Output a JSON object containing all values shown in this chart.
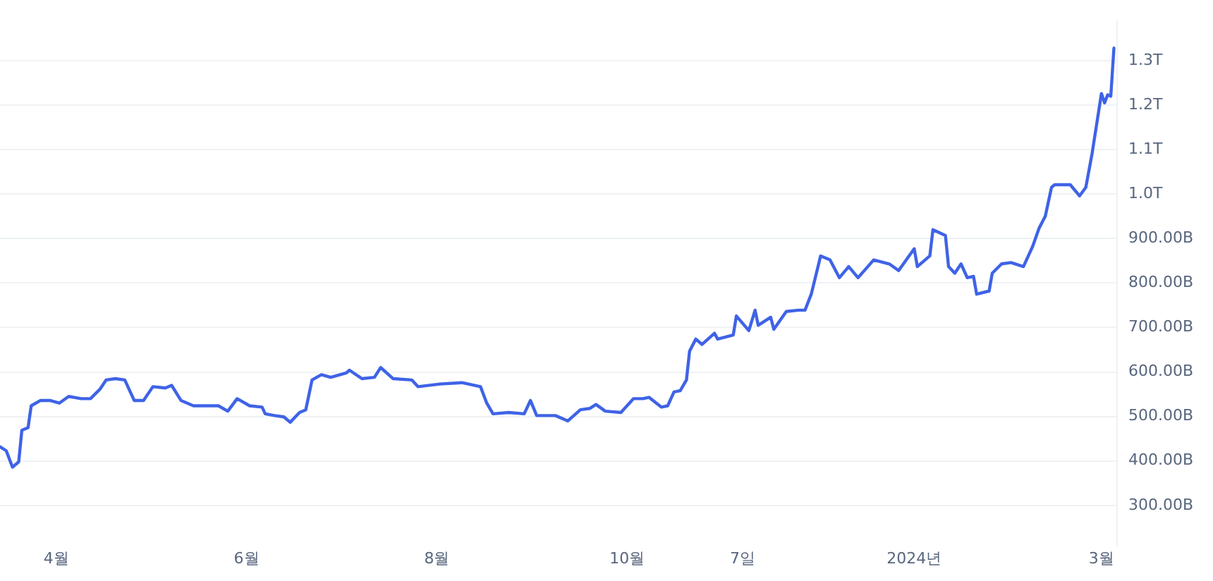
{
  "chart_data": {
    "type": "line",
    "color": "#3f63e6",
    "grid": "y",
    "legend": false,
    "marker": "none",
    "line_style": "solid",
    "x": [
      "2023-03-14",
      "2023-03-16",
      "2023-03-18",
      "2023-03-20",
      "2023-03-21",
      "2023-03-23",
      "2023-03-24",
      "2023-03-27",
      "2023-03-30",
      "2023-04-02",
      "2023-04-05",
      "2023-04-09",
      "2023-04-12",
      "2023-04-15",
      "2023-04-17",
      "2023-04-20",
      "2023-04-23",
      "2023-04-26",
      "2023-04-29",
      "2023-05-02",
      "2023-05-06",
      "2023-05-08",
      "2023-05-11",
      "2023-05-15",
      "2023-05-19",
      "2023-05-23",
      "2023-05-26",
      "2023-05-29",
      "2023-06-02",
      "2023-06-06",
      "2023-06-07",
      "2023-06-10",
      "2023-06-13",
      "2023-06-15",
      "2023-06-18",
      "2023-06-20",
      "2023-06-22",
      "2023-06-25",
      "2023-06-28",
      "2023-07-03",
      "2023-07-04",
      "2023-07-08",
      "2023-07-12",
      "2023-07-14",
      "2023-07-18",
      "2023-07-24",
      "2023-07-26",
      "2023-08-02",
      "2023-08-09",
      "2023-08-15",
      "2023-08-17",
      "2023-08-19",
      "2023-08-24",
      "2023-08-29",
      "2023-08-31",
      "2023-09-02",
      "2023-09-08",
      "2023-09-12",
      "2023-09-16",
      "2023-09-19",
      "2023-09-21",
      "2023-09-24",
      "2023-09-29",
      "2023-10-03",
      "2023-10-06",
      "2023-10-08",
      "2023-10-12",
      "2023-10-14",
      "2023-10-16",
      "2023-10-18",
      "2023-10-20",
      "2023-10-21",
      "2023-10-23",
      "2023-10-25",
      "2023-10-29",
      "2023-10-30",
      "2023-11-04",
      "2023-11-05",
      "2023-11-09",
      "2023-11-11",
      "2023-11-12",
      "2023-11-16",
      "2023-11-17",
      "2023-11-21",
      "2023-11-25",
      "2023-11-27",
      "2023-11-29",
      "2023-12-02",
      "2023-12-05",
      "2023-12-08",
      "2023-12-11",
      "2023-12-14",
      "2023-12-19",
      "2023-12-24",
      "2023-12-27",
      "2024-01-01",
      "2024-01-02",
      "2024-01-06",
      "2024-01-07",
      "2024-01-11",
      "2024-01-12",
      "2024-01-14",
      "2024-01-16",
      "2024-01-18",
      "2024-01-20",
      "2024-01-21",
      "2024-01-25",
      "2024-01-26",
      "2024-01-29",
      "2024-02-01",
      "2024-02-05",
      "2024-02-08",
      "2024-02-10",
      "2024-02-12",
      "2024-02-14",
      "2024-02-15",
      "2024-02-20",
      "2024-02-23",
      "2024-02-25",
      "2024-02-27",
      "2024-03-01",
      "2024-03-02",
      "2024-03-03",
      "2024-03-04",
      "2024-03-05"
    ],
    "values": [
      432000000000.0,
      423000000000.0,
      386000000000.0,
      398000000000.0,
      469000000000.0,
      475000000000.0,
      524000000000.0,
      536000000000.0,
      536000000000.0,
      530000000000.0,
      545000000000.0,
      540000000000.0,
      540000000000.0,
      561000000000.0,
      582000000000.0,
      585000000000.0,
      582000000000.0,
      536000000000.0,
      536000000000.0,
      567000000000.0,
      564000000000.0,
      570000000000.0,
      536000000000.0,
      524000000000.0,
      524000000000.0,
      524000000000.0,
      512000000000.0,
      540000000000.0,
      524000000000.0,
      521000000000.0,
      506000000000.0,
      502000000000.0,
      499000000000.0,
      487000000000.0,
      509000000000.0,
      515000000000.0,
      582000000000.0,
      594000000000.0,
      588000000000.0,
      598000000000.0,
      604000000000.0,
      585000000000.0,
      588000000000.0,
      610000000000.0,
      585000000000.0,
      582000000000.0,
      567000000000.0,
      573000000000.0,
      576000000000.0,
      567000000000.0,
      530000000000.0,
      506000000000.0,
      509000000000.0,
      506000000000.0,
      536000000000.0,
      502000000000.0,
      502000000000.0,
      490000000000.0,
      515000000000.0,
      518000000000.0,
      527000000000.0,
      512000000000.0,
      509000000000.0,
      540000000000.0,
      540000000000.0,
      543000000000.0,
      521000000000.0,
      524000000000.0,
      555000000000.0,
      558000000000.0,
      582000000000.0,
      647000000000.0,
      674000000000.0,
      662000000000.0,
      687000000000.0,
      674000000000.0,
      683000000000.0,
      726000000000.0,
      693000000000.0,
      739000000000.0,
      705000000000.0,
      723000000000.0,
      696000000000.0,
      736000000000.0,
      739000000000.0,
      739000000000.0,
      775000000000.0,
      861000000000.0,
      852000000000.0,
      812000000000.0,
      837000000000.0,
      812000000000.0,
      852000000000.0,
      843000000000.0,
      828000000000.0,
      877000000000.0,
      837000000000.0,
      861000000000.0,
      920000000000.0,
      907000000000.0,
      837000000000.0,
      822000000000.0,
      843000000000.0,
      812000000000.0,
      815000000000.0,
      775000000000.0,
      782000000000.0,
      822000000000.0,
      843000000000.0,
      846000000000.0,
      837000000000.0,
      883000000000.0,
      923000000000.0,
      950000000000.0,
      1015000000000.0,
      1021000000000.0,
      1021000000000.0,
      996000000000.0,
      1015000000000.0,
      1091000000000.0,
      1226000000000.0,
      1205000000000.0,
      1223000000000.0,
      1220000000000.0,
      1328000000000.0
    ],
    "xlim": [
      "2023-03-14",
      "2024-03-06"
    ],
    "xticks": [
      {
        "value": "2023-04-01",
        "label": "4월"
      },
      {
        "value": "2023-06-01",
        "label": "6월"
      },
      {
        "value": "2023-08-01",
        "label": "8월"
      },
      {
        "value": "2023-10-01",
        "label": "10월"
      },
      {
        "value": "2023-11-07",
        "label": "7일"
      },
      {
        "value": "2024-01-01",
        "label": "2024년"
      },
      {
        "value": "2024-03-01",
        "label": "3월"
      }
    ],
    "ylim": [
      210000000000.0,
      1390000000000.0
    ],
    "yticks": [
      {
        "value": 300000000000.0,
        "label": "300.00B"
      },
      {
        "value": 400000000000.0,
        "label": "400.00B"
      },
      {
        "value": 500000000000.0,
        "label": "500.00B"
      },
      {
        "value": 600000000000.0,
        "label": "600.00B"
      },
      {
        "value": 700000000000.0,
        "label": "700.00B"
      },
      {
        "value": 800000000000.0,
        "label": "800.00B"
      },
      {
        "value": 900000000000.0,
        "label": "900.00B"
      },
      {
        "value": 1000000000000.0,
        "label": "1.0T"
      },
      {
        "value": 1100000000000.0,
        "label": "1.1T"
      },
      {
        "value": 1200000000000.0,
        "label": "1.2T"
      },
      {
        "value": 1300000000000.0,
        "label": "1.3T"
      }
    ]
  }
}
